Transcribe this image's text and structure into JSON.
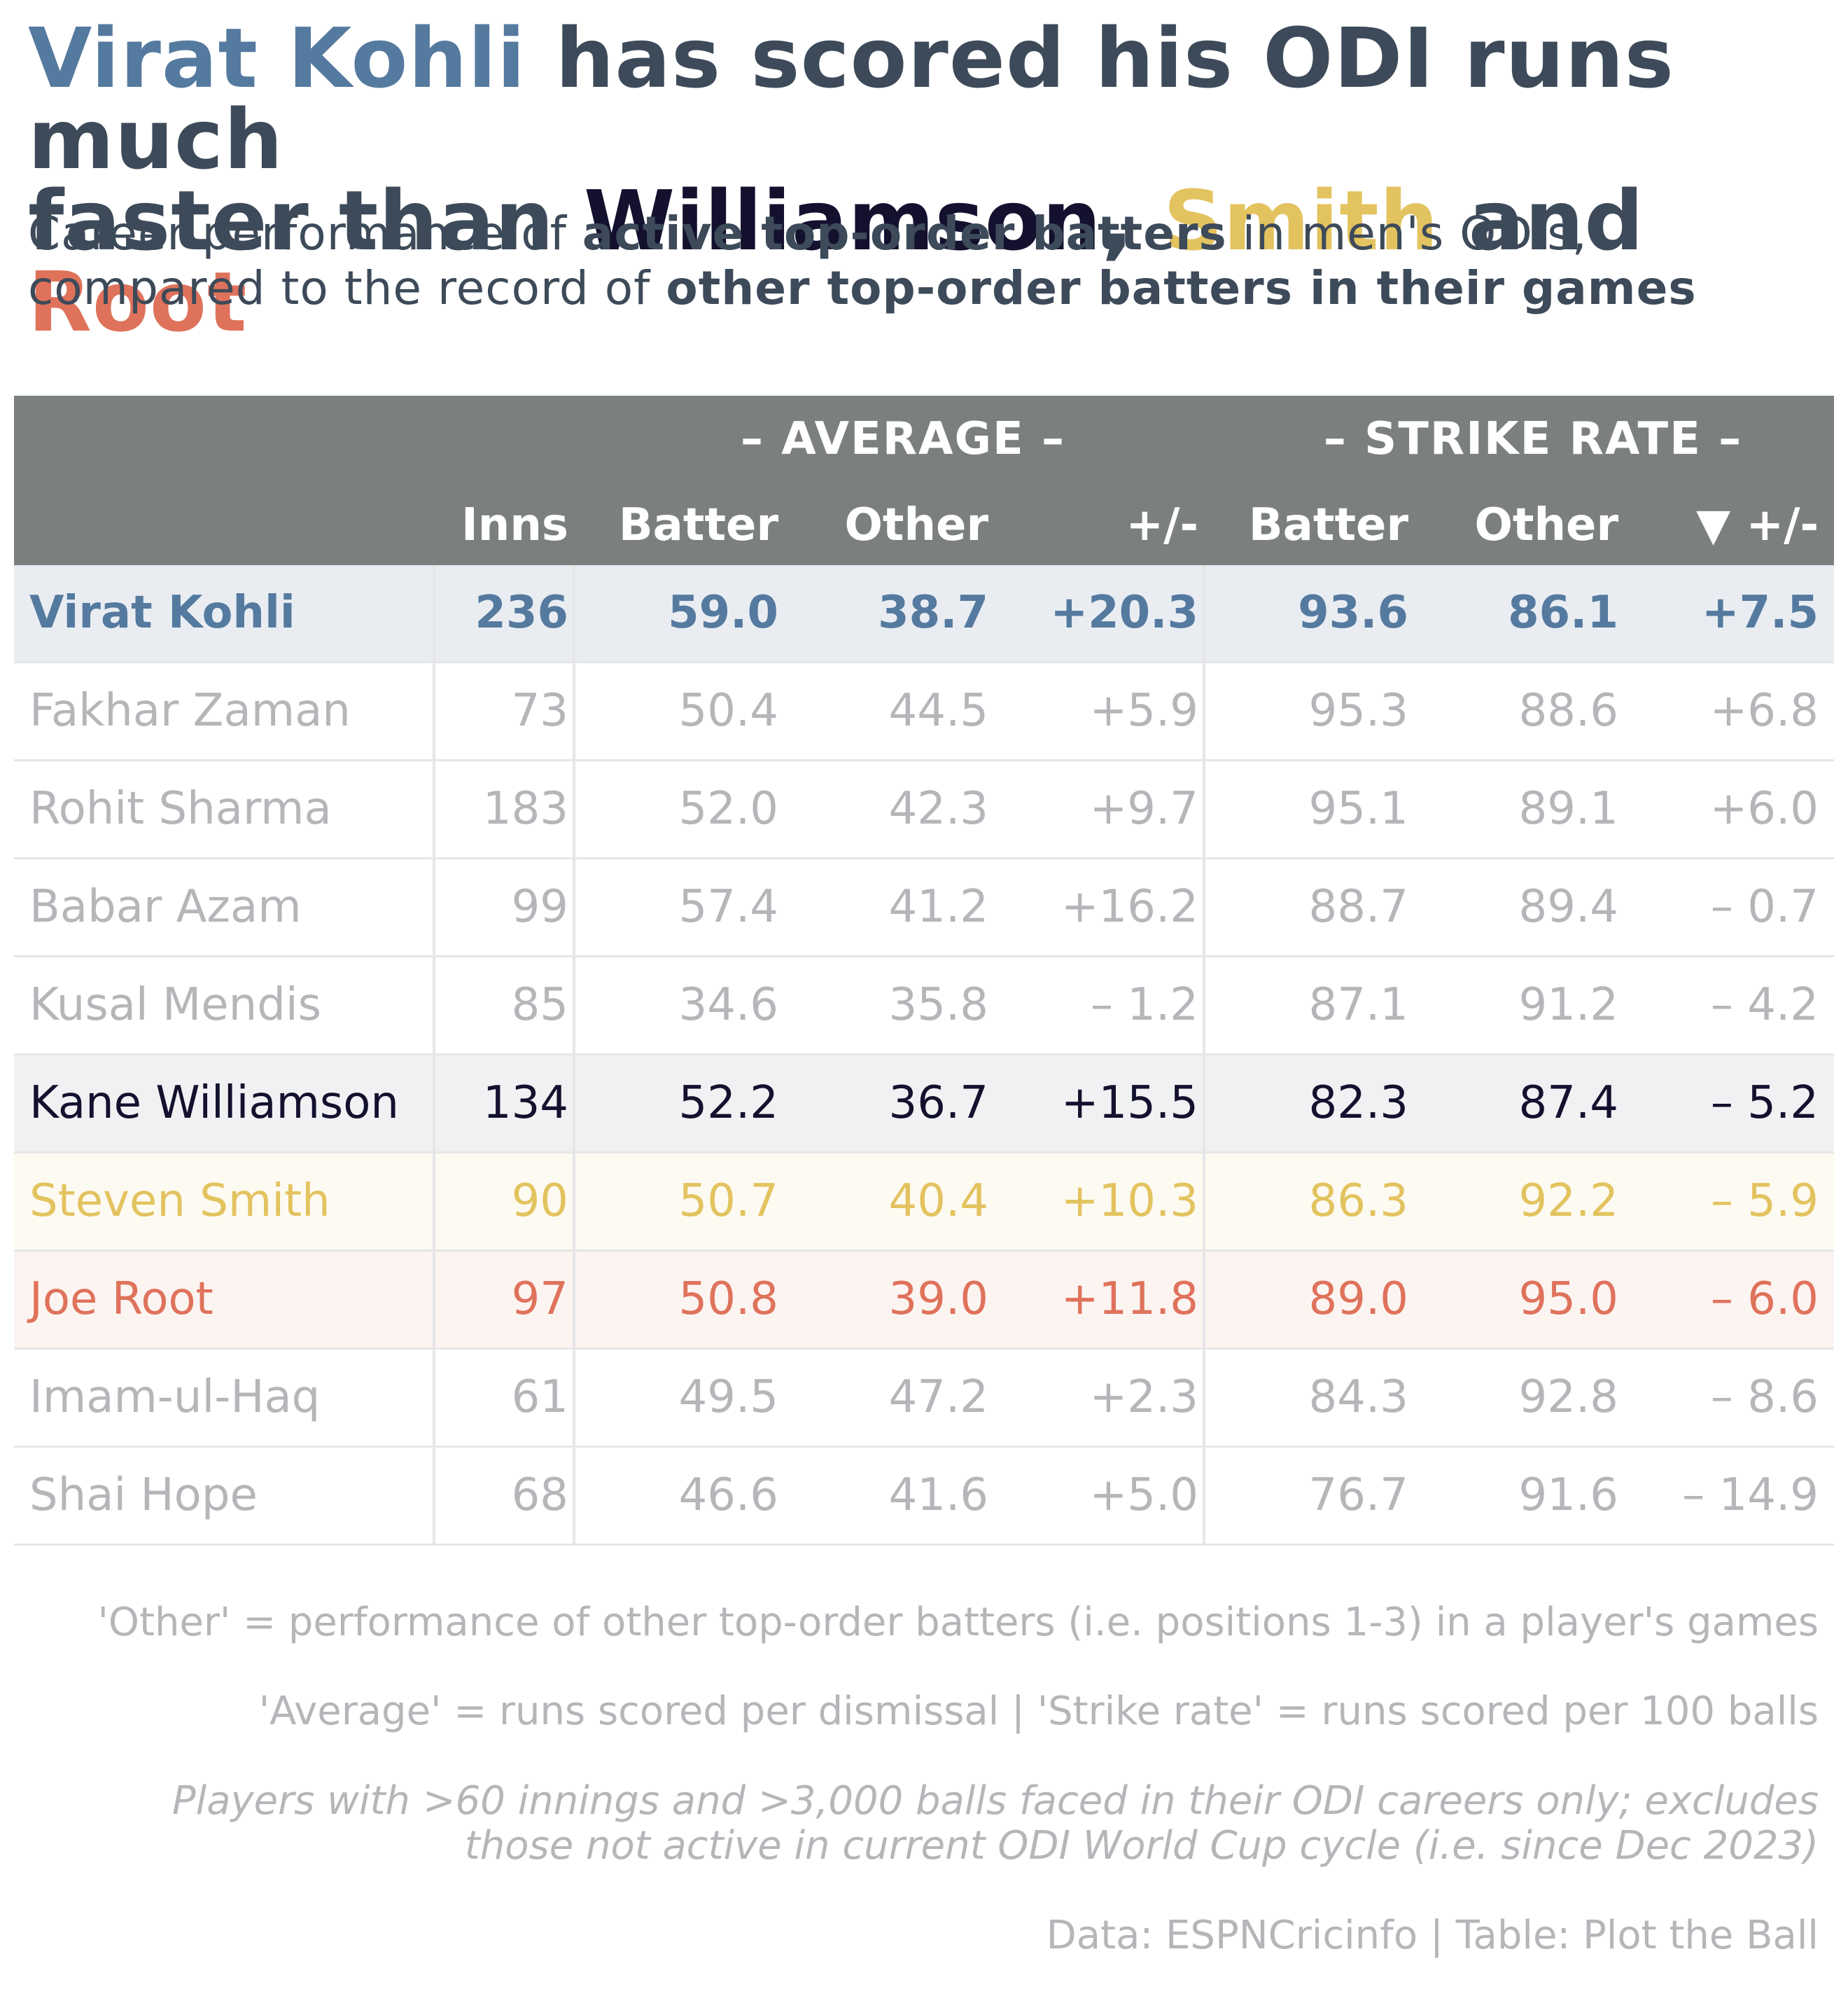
{
  "title": {
    "kohli": "Virat Kohli",
    "part1": " has scored his ODI runs much",
    "part2": "faster than ",
    "williamson": "Williamson",
    "comma": ", ",
    "smith": "Smith",
    "and": " and ",
    "root": "Root"
  },
  "subtitle": {
    "a": "Career performance of ",
    "b": "active top-order batters",
    "c": " in men's ODIs,",
    "d": "compared to the record of ",
    "e": "other top-order batters in their games"
  },
  "colors": {
    "kohli": "#557a9f",
    "williamson": "#13112e",
    "smith": "#e3c35f",
    "root": "#df725b",
    "header_bg": "#7b807e",
    "dim_text": "#b5b6b9"
  },
  "header": {
    "group_average": "– AVERAGE –",
    "group_strike_rate": "– STRIKE RATE –",
    "columns": [
      "Inns",
      "Batter",
      "Other",
      "+/-",
      "Batter",
      "Other",
      "▼ +/-"
    ]
  },
  "chart_data": {
    "type": "table",
    "rows": [
      {
        "name": "Virat Kohli",
        "inns": "236",
        "avg_batter": "59.0",
        "avg_other": "38.7",
        "avg_diff": "+20.3",
        "sr_batter": "93.6",
        "sr_other": "86.1",
        "sr_diff": "+7.5"
      },
      {
        "name": "Fakhar Zaman",
        "inns": "73",
        "avg_batter": "50.4",
        "avg_other": "44.5",
        "avg_diff": "+5.9",
        "sr_batter": "95.3",
        "sr_other": "88.6",
        "sr_diff": "+6.8"
      },
      {
        "name": "Rohit Sharma",
        "inns": "183",
        "avg_batter": "52.0",
        "avg_other": "42.3",
        "avg_diff": "+9.7",
        "sr_batter": "95.1",
        "sr_other": "89.1",
        "sr_diff": "+6.0"
      },
      {
        "name": "Babar Azam",
        "inns": "99",
        "avg_batter": "57.4",
        "avg_other": "41.2",
        "avg_diff": "+16.2",
        "sr_batter": "88.7",
        "sr_other": "89.4",
        "sr_diff": "– 0.7"
      },
      {
        "name": "Kusal Mendis",
        "inns": "85",
        "avg_batter": "34.6",
        "avg_other": "35.8",
        "avg_diff": "– 1.2",
        "sr_batter": "87.1",
        "sr_other": "91.2",
        "sr_diff": "– 4.2"
      },
      {
        "name": "Kane Williamson",
        "inns": "134",
        "avg_batter": "52.2",
        "avg_other": "36.7",
        "avg_diff": "+15.5",
        "sr_batter": "82.3",
        "sr_other": "87.4",
        "sr_diff": "– 5.2"
      },
      {
        "name": "Steven Smith",
        "inns": "90",
        "avg_batter": "50.7",
        "avg_other": "40.4",
        "avg_diff": "+10.3",
        "sr_batter": "86.3",
        "sr_other": "92.2",
        "sr_diff": "– 5.9"
      },
      {
        "name": "Joe Root",
        "inns": "97",
        "avg_batter": "50.8",
        "avg_other": "39.0",
        "avg_diff": "+11.8",
        "sr_batter": "89.0",
        "sr_other": "95.0",
        "sr_diff": "– 6.0"
      },
      {
        "name": "Imam-ul-Haq",
        "inns": "61",
        "avg_batter": "49.5",
        "avg_other": "47.2",
        "avg_diff": "+2.3",
        "sr_batter": "84.3",
        "sr_other": "92.8",
        "sr_diff": "– 8.6"
      },
      {
        "name": "Shai Hope",
        "inns": "68",
        "avg_batter": "46.6",
        "avg_other": "41.6",
        "avg_diff": "+5.0",
        "sr_batter": "76.7",
        "sr_other": "91.6",
        "sr_diff": "– 14.9"
      }
    ]
  },
  "notes": {
    "other_def": "'Other' = performance of other top-order batters (i.e. positions 1-3) in a player's games",
    "defs": "'Average' = runs scored per dismissal | 'Strike rate' = runs scored per 100 balls",
    "criteria_line1": "Players with >60 innings and >3,000 balls faced in their ODI careers only; excludes",
    "criteria_line2": "those not active in current ODI World Cup cycle (i.e. since Dec 2023)",
    "source": "Data: ESPNCricinfo | Table: Plot the Ball"
  }
}
